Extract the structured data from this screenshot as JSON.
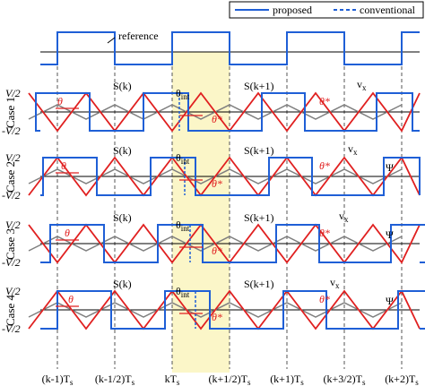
{
  "legend": {
    "proposed": "proposed",
    "conventional": "conventional"
  },
  "reference_label": "reference",
  "cases": [
    {
      "label": "Case 1",
      "vpos": "V/2",
      "vneg": "-V/2"
    },
    {
      "label": "Case 2",
      "vpos": "V/2",
      "vneg": "-V/2"
    },
    {
      "label": "Case 3",
      "vpos": "V/2",
      "vneg": "-V/2"
    },
    {
      "label": "Case 4",
      "vpos": "V/2",
      "vneg": "-V/2"
    }
  ],
  "x_ticks": [
    "(k-1)T",
    "(k-1/2)T",
    "kT",
    "(k+1/2)T",
    "(k+1)T",
    "(k+3/2)T",
    "(k+2)T"
  ],
  "x_tick_subscript": "s",
  "annotations": {
    "s_k": "S(k)",
    "s_k1": "S(k+1)",
    "theta": "θ",
    "theta_star": "θ*",
    "theta_int": "θ",
    "int_sub": "int",
    "vx": "v",
    "vx_sub": "x",
    "psi": "Ψ"
  },
  "colors": {
    "proposed": "#1f5fd6",
    "carrier": "#e02020",
    "secondary": "#808080",
    "highlight": "#fbf6c8"
  }
}
